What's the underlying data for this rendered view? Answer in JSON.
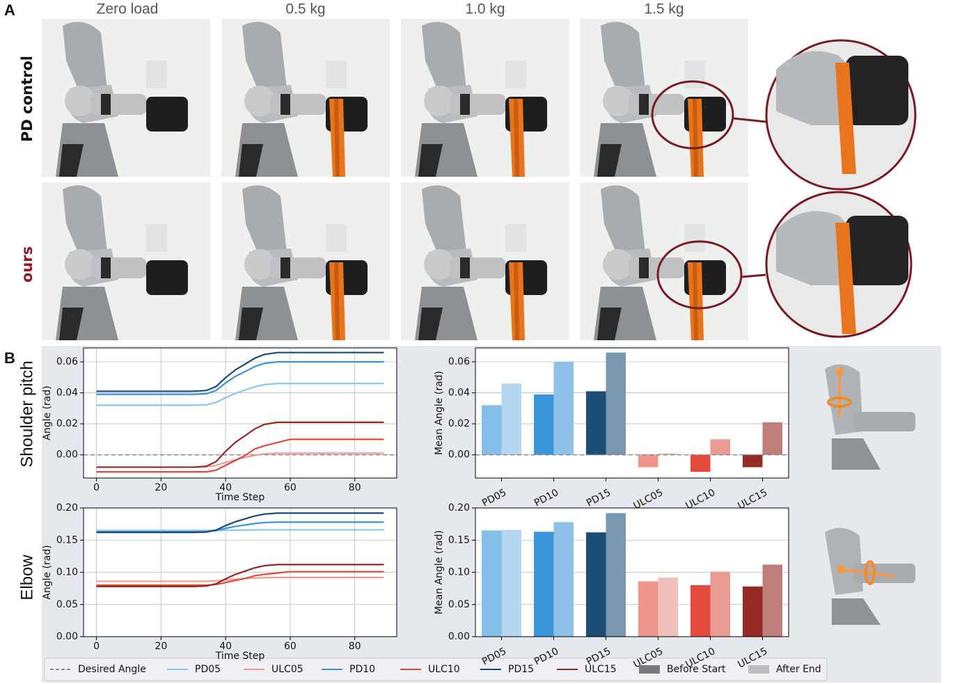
{
  "panel_a": {
    "label": "A",
    "columns": [
      "Zero load",
      "0.5 kg",
      "1.0 kg",
      "1.5 kg"
    ],
    "rows": [
      "PD control",
      "ours"
    ]
  },
  "panel_b": {
    "label": "B",
    "rows": [
      "Shoulder pitch",
      "Elbow"
    ]
  },
  "chart_data": [
    {
      "type": "line",
      "ylabel": "Angle (rad)",
      "xlabel": "Time Step",
      "grid": true,
      "xlim": [
        -4,
        93
      ],
      "xticks": [
        0,
        20,
        40,
        60,
        80
      ],
      "ylim": [
        -0.015,
        0.069
      ],
      "yticks": [
        {
          "value": 0,
          "label": "0.00"
        },
        0.02,
        0.04,
        0.06
      ],
      "reference": {
        "name": "Desired Angle",
        "value": 0,
        "color": "#888888"
      },
      "x": [
        0,
        10,
        20,
        30,
        34,
        37,
        40,
        43,
        46,
        49,
        52,
        56,
        60,
        70,
        80,
        89
      ],
      "series": [
        {
          "name": "PD05",
          "color": "#8cc4ec",
          "values": [
            0.032,
            0.032,
            0.032,
            0.032,
            0.0323,
            0.0337,
            0.0369,
            0.0397,
            0.0418,
            0.0439,
            0.0453,
            0.046,
            0.046,
            0.046,
            0.046,
            0.046
          ]
        },
        {
          "name": "ULC05",
          "color": "#f29a91",
          "values": [
            -0.008,
            -0.008,
            -0.008,
            -0.008,
            -0.0078,
            -0.0069,
            -0.0049,
            -0.0031,
            -0.0017,
            -0.0004,
            0.0006,
            0.001,
            0.001,
            0.001,
            0.001,
            0.001
          ]
        },
        {
          "name": "PD10",
          "color": "#3a93d6",
          "values": [
            0.039,
            0.039,
            0.039,
            0.039,
            0.0394,
            0.0415,
            0.0464,
            0.0506,
            0.0537,
            0.0569,
            0.059,
            0.06,
            0.06,
            0.06,
            0.06,
            0.06
          ]
        },
        {
          "name": "ULC10",
          "color": "#e2483a",
          "values": [
            -0.011,
            -0.011,
            -0.011,
            -0.011,
            -0.011,
            -0.01,
            -0.0068,
            -0.0037,
            -0.0005,
            0.0037,
            0.0058,
            0.0079,
            0.01,
            0.01,
            0.01,
            0.01
          ]
        },
        {
          "name": "PD15",
          "color": "#1a4a72",
          "values": [
            0.041,
            0.041,
            0.041,
            0.041,
            0.0415,
            0.044,
            0.0498,
            0.0548,
            0.0585,
            0.0623,
            0.0648,
            0.066,
            0.066,
            0.066,
            0.066,
            0.066
          ]
        },
        {
          "name": "ULC15",
          "color": "#922a24",
          "values": [
            -0.008,
            -0.008,
            -0.008,
            -0.008,
            -0.0074,
            -0.0045,
            0.0022,
            0.008,
            0.0123,
            0.0167,
            0.0196,
            0.021,
            0.021,
            0.021,
            0.021,
            0.021
          ]
        }
      ]
    },
    {
      "type": "bar",
      "ylabel": "Mean Angle (rad)",
      "grid": true,
      "ylim": [
        -0.015,
        0.069
      ],
      "yticks": [
        {
          "value": 0,
          "label": "0.00"
        },
        0.02,
        0.04,
        0.06
      ],
      "reference": {
        "value": 0,
        "color": "#888888"
      },
      "categories": [
        "PD05",
        "PD10",
        "PD15",
        "ULC05",
        "ULC10",
        "ULC15"
      ],
      "series": [
        {
          "name": "Before Start",
          "legend_color": "#7a7a7a",
          "colors": [
            "#85bfe9",
            "#3b96da",
            "#1b4d75",
            "#f0958c",
            "#e34a3b",
            "#962b26"
          ],
          "values": [
            0.032,
            0.039,
            0.041,
            -0.008,
            -0.011,
            -0.008
          ]
        },
        {
          "name": "After End",
          "legend_color": "#bdbdbd",
          "colors": [
            "#b5d6f1",
            "#8dc1ea",
            "#7a97b0",
            "#efc0bb",
            "#e89a93",
            "#c07e7b"
          ],
          "values": [
            0.046,
            0.06,
            0.066,
            0.001,
            0.01,
            0.021
          ]
        }
      ]
    },
    {
      "type": "line",
      "ylabel": "Angle (rad)",
      "xlabel": "Time Step",
      "grid": true,
      "xlim": [
        -4,
        93
      ],
      "xticks": [
        0,
        20,
        40,
        60,
        80
      ],
      "ylim": [
        0,
        0.2
      ],
      "yticks": [
        {
          "value": 0,
          "label": "0.00"
        },
        0.05,
        {
          "value": 0.1,
          "label": "0.10"
        },
        0.15,
        {
          "value": 0.2,
          "label": "0.20"
        }
      ],
      "x": [
        0,
        10,
        20,
        30,
        34,
        37,
        40,
        43,
        46,
        49,
        52,
        56,
        60,
        70,
        80,
        89
      ],
      "series": [
        {
          "name": "PD05",
          "color": "#8cc4ec",
          "values": [
            0.165,
            0.165,
            0.165,
            0.165,
            0.165,
            0.165,
            0.1654,
            0.1656,
            0.1657,
            0.1659,
            0.166,
            0.166,
            0.166,
            0.166,
            0.166,
            0.166
          ]
        },
        {
          "name": "ULC05",
          "color": "#f29a91",
          "values": [
            0.086,
            0.086,
            0.086,
            0.086,
            0.0861,
            0.0867,
            0.0881,
            0.0893,
            0.0902,
            0.0911,
            0.0917,
            0.092,
            0.092,
            0.092,
            0.092,
            0.092
          ]
        },
        {
          "name": "PD10",
          "color": "#3a93d6",
          "values": [
            0.163,
            0.163,
            0.163,
            0.163,
            0.1633,
            0.1648,
            0.1683,
            0.1713,
            0.1735,
            0.1758,
            0.1773,
            0.178,
            0.178,
            0.178,
            0.178,
            0.178
          ]
        },
        {
          "name": "ULC10",
          "color": "#e2483a",
          "values": [
            0.08,
            0.08,
            0.08,
            0.08,
            0.08,
            0.081,
            0.0842,
            0.0874,
            0.0905,
            0.0947,
            0.0968,
            0.0989,
            0.101,
            0.101,
            0.101,
            0.101
          ]
        },
        {
          "name": "PD15",
          "color": "#1a4a72",
          "values": [
            0.162,
            0.162,
            0.162,
            0.162,
            0.1626,
            0.1656,
            0.1725,
            0.1785,
            0.183,
            0.1875,
            0.1905,
            0.192,
            0.192,
            0.192,
            0.192,
            0.192
          ]
        },
        {
          "name": "ULC15",
          "color": "#922a24",
          "values": [
            0.078,
            0.078,
            0.078,
            0.078,
            0.0787,
            0.0821,
            0.0899,
            0.0967,
            0.1018,
            0.1069,
            0.1103,
            0.112,
            0.112,
            0.112,
            0.112,
            0.112
          ]
        }
      ]
    },
    {
      "type": "bar",
      "ylabel": "Mean Angle (rad)",
      "grid": true,
      "ylim": [
        0,
        0.2
      ],
      "yticks": [
        {
          "value": 0,
          "label": "0.00"
        },
        0.05,
        {
          "value": 0.1,
          "label": "0.10"
        },
        0.15,
        {
          "value": 0.2,
          "label": "0.20"
        }
      ],
      "categories": [
        "PD05",
        "PD10",
        "PD15",
        "ULC05",
        "ULC10",
        "ULC15"
      ],
      "series": [
        {
          "name": "Before Start",
          "legend_color": "#7a7a7a",
          "colors": [
            "#85bfe9",
            "#3b96da",
            "#1b4d75",
            "#f0958c",
            "#e34a3b",
            "#962b26"
          ],
          "values": [
            0.165,
            0.163,
            0.162,
            0.086,
            0.08,
            0.078
          ]
        },
        {
          "name": "After End",
          "legend_color": "#bdbdbd",
          "colors": [
            "#b5d6f1",
            "#8dc1ea",
            "#7a97b0",
            "#efc0bb",
            "#e89a93",
            "#c07e7b"
          ],
          "values": [
            0.166,
            0.178,
            0.192,
            0.092,
            0.101,
            0.112
          ]
        }
      ]
    }
  ]
}
